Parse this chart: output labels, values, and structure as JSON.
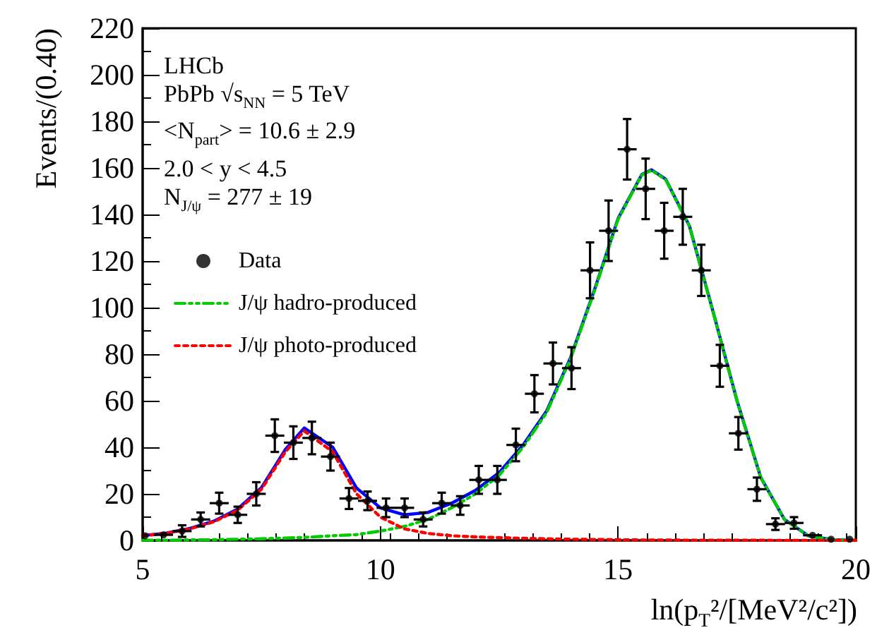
{
  "chart_data": {
    "type": "scatter",
    "xlabel": "ln(p$_{T}$²/[MeV²/c²])",
    "ylabel": "Events/(0.40)",
    "annotations": [
      "LHCb",
      "PbPb √s$_{NN}$ = 5 TeV",
      "<N$_{part}$> = 10.6 ± 2.9",
      "2.0 < y < 4.5",
      "N$_{J/ψ}$ = 277 ± 19"
    ],
    "xlim": [
      5,
      20
    ],
    "xticks": [
      5,
      10,
      15,
      20
    ],
    "ylim": [
      0,
      220
    ],
    "yticks": [
      0,
      20,
      40,
      60,
      80,
      100,
      120,
      140,
      160,
      180,
      200,
      220
    ],
    "grid": false,
    "legend": "left",
    "series": [
      {
        "name": "Data",
        "marker": "circle",
        "color": "#000000",
        "x": [
          5.05,
          5.44,
          5.83,
          6.22,
          6.61,
          7.0,
          7.39,
          7.78,
          8.17,
          8.56,
          8.95,
          9.34,
          9.73,
          10.12,
          10.51,
          10.9,
          11.29,
          11.68,
          12.07,
          12.46,
          12.85,
          13.24,
          13.63,
          14.02,
          14.41,
          14.8,
          15.19,
          15.58,
          15.97,
          16.36,
          16.75,
          17.14,
          17.53,
          17.92,
          18.31,
          18.7,
          19.09,
          19.48,
          19.87
        ],
        "values": [
          2,
          2.4,
          4,
          9,
          16,
          11,
          20,
          45,
          42,
          44,
          36,
          18,
          17,
          14,
          14,
          9,
          16,
          15,
          26,
          26,
          41,
          63,
          76,
          74,
          116,
          133,
          168,
          151,
          133,
          139,
          116,
          75,
          46,
          22,
          7,
          7.5,
          2.2,
          0.5,
          0.5
        ],
        "errors": [
          null,
          null,
          2.5,
          3,
          4.5,
          3.5,
          5,
          7,
          7,
          7,
          6,
          4.5,
          4,
          4,
          4,
          3,
          4.5,
          4,
          6,
          6,
          7,
          8,
          9,
          9,
          12,
          13,
          13,
          13,
          12,
          12,
          11,
          9,
          7,
          5,
          2.5,
          2.5,
          null,
          null,
          null
        ],
        "xerrors": [
          null,
          0.2,
          0.2,
          0.2,
          0.2,
          0.2,
          0.2,
          0.2,
          0.2,
          0.2,
          0.2,
          0.2,
          0.2,
          0.2,
          0.2,
          0.2,
          0.2,
          0.2,
          0.2,
          0.2,
          0.2,
          0.2,
          0.2,
          0.2,
          0.2,
          0.2,
          0.2,
          0.2,
          0.2,
          0.2,
          0.2,
          0.2,
          0.2,
          0.2,
          0.2,
          0.2,
          0.2,
          null,
          null
        ]
      },
      {
        "type": "line",
        "marker": "none",
        "line_style": "solid",
        "color": "#0000ff",
        "x": [
          5,
          5.5,
          6,
          6.5,
          7,
          7.5,
          8,
          8.4,
          9,
          9.5,
          10,
          10.5,
          11,
          11.5,
          12,
          12.5,
          13,
          13.5,
          14,
          14.5,
          15,
          15.5,
          15.7,
          16,
          16.5,
          17,
          17.5,
          18,
          18.5,
          19,
          19.5,
          20
        ],
        "values": [
          2.1,
          3.1,
          5.2,
          8.3,
          13.5,
          22.7,
          39,
          48.3,
          40,
          22.5,
          14,
          11,
          12,
          16,
          21.5,
          29.2,
          40.9,
          55.7,
          78.5,
          107.4,
          138.3,
          157.2,
          159.2,
          155.2,
          135.1,
          98.1,
          60.1,
          27.1,
          9,
          2,
          0.3,
          0
        ]
      },
      {
        "name": "J/ψ hadro-produced",
        "type": "line",
        "marker": "none",
        "line_style": "dashed",
        "color": "#00cc00",
        "x": [
          5,
          5.5,
          6,
          6.5,
          7,
          7.5,
          8,
          8.4,
          9,
          9.5,
          10,
          10.5,
          11,
          11.5,
          12,
          12.5,
          13,
          13.5,
          14,
          14.5,
          15,
          15.5,
          15.7,
          16,
          16.5,
          17,
          17.5,
          18,
          18.5,
          19,
          19.5,
          20
        ],
        "values": [
          0.1,
          0.1,
          0.2,
          0.3,
          0.5,
          0.7,
          1,
          1.3,
          2,
          2.5,
          4,
          6,
          9,
          14,
          20,
          28,
          40,
          55,
          78,
          107,
          138,
          157,
          159,
          155,
          135,
          98,
          60,
          27,
          9,
          2,
          0.3,
          0
        ]
      },
      {
        "name": "J/ψ photo-produced",
        "type": "line",
        "marker": "none",
        "line_style": "dotted",
        "color": "#ff0000",
        "x": [
          5,
          5.5,
          6,
          6.5,
          7,
          7.5,
          8,
          8.4,
          9,
          9.5,
          10,
          10.5,
          11,
          11.5,
          12,
          12.5,
          13,
          13.5,
          14,
          14.5,
          15,
          15.5,
          15.7,
          16,
          16.5,
          17,
          17.5,
          18,
          18.5,
          19,
          19.5,
          20
        ],
        "values": [
          2,
          3,
          5,
          8,
          13,
          22,
          38,
          47,
          38,
          20,
          10,
          5,
          3,
          2,
          1.5,
          1.2,
          0.9,
          0.7,
          0.5,
          0.4,
          0.3,
          0.2,
          0.2,
          0.2,
          0.1,
          0.1,
          0.1,
          0.1,
          0,
          0,
          0,
          0
        ]
      }
    ]
  }
}
